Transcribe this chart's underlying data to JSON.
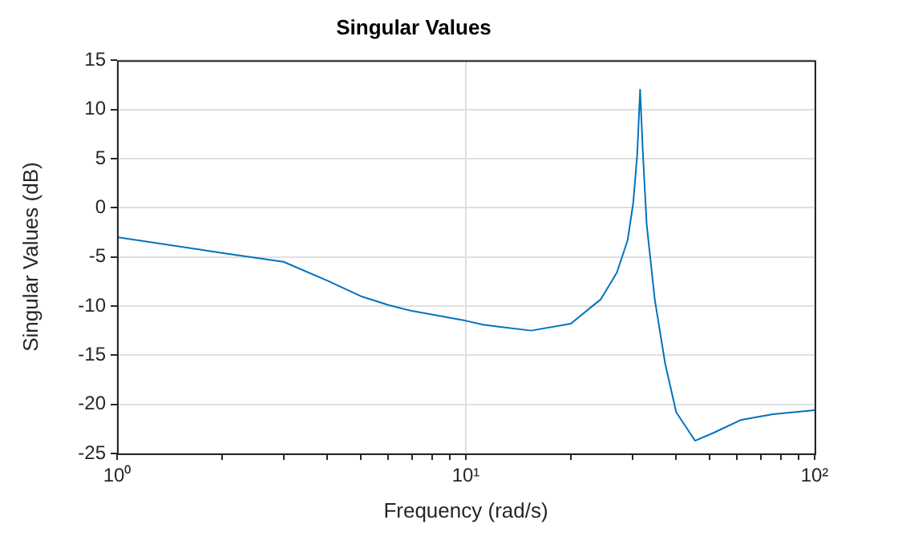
{
  "chart_data": {
    "type": "line",
    "title": "Singular Values",
    "xlabel": "Frequency (rad/s)",
    "ylabel": "Singular Values (dB)",
    "log": "x",
    "grid": true,
    "legend": false,
    "marker": "none",
    "line_style": "solid",
    "xlim": [
      1,
      100
    ],
    "ylim": [
      -25,
      15
    ],
    "xticks": [
      {
        "value": 1,
        "label": "10⁰"
      },
      {
        "value": 2,
        "label": null
      },
      {
        "value": 3,
        "label": null
      },
      {
        "value": 4,
        "label": null
      },
      {
        "value": 5,
        "label": null
      },
      {
        "value": 6,
        "label": null
      },
      {
        "value": 7,
        "label": null
      },
      {
        "value": 8,
        "label": null
      },
      {
        "value": 9,
        "label": null
      },
      {
        "value": 10,
        "label": "10¹"
      },
      {
        "value": 20,
        "label": null
      },
      {
        "value": 30,
        "label": null
      },
      {
        "value": 40,
        "label": null
      },
      {
        "value": 50,
        "label": null
      },
      {
        "value": 60,
        "label": null
      },
      {
        "value": 70,
        "label": null
      },
      {
        "value": 80,
        "label": null
      },
      {
        "value": 90,
        "label": null
      },
      {
        "value": 100,
        "label": "10²"
      }
    ],
    "yticks": [
      -25,
      -20,
      -15,
      -10,
      -5,
      0,
      5,
      10,
      15
    ],
    "x": [
      1,
      2,
      3,
      4,
      5,
      6,
      7,
      10,
      11.2,
      12.4,
      15.4,
      20,
      24.4,
      27.1,
      29.1,
      30.2,
      31,
      31.6,
      32.2,
      33,
      34.8,
      37.3,
      40.1,
      45.4,
      51.3,
      61.3,
      75.9,
      100
    ],
    "series": [
      {
        "color": "#0072bd",
        "values": [
          -3.0,
          -4.6,
          -5.5,
          -7.4,
          -9.0,
          -9.9,
          -10.5,
          -11.5,
          -11.9,
          -12.1,
          -12.5,
          -11.8,
          -9.3,
          -6.6,
          -3.3,
          0.5,
          5.4,
          12.0,
          5.4,
          -1.7,
          -9.3,
          -15.9,
          -20.8,
          -23.7,
          -22.9,
          -21.6,
          -21.0,
          -20.6
        ]
      }
    ]
  }
}
